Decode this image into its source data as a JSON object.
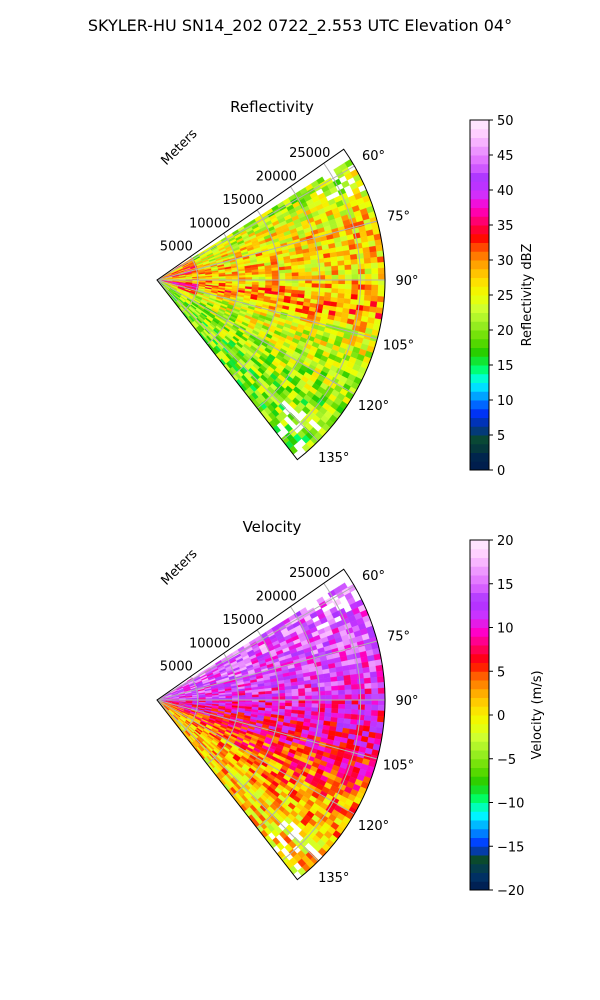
{
  "figure_title": "SKYLER-HU  SN14_202  0722_2.553 UTC Elevation 04°",
  "chart_data": [
    {
      "type": "heatmap",
      "projection": "polar-sector",
      "title": "Reflectivity",
      "range_axis_label": "Meters",
      "range_ticks": [
        5000,
        10000,
        15000,
        20000,
        25000
      ],
      "range_tick_labels": [
        "5000",
        "10000",
        "15000",
        "20000",
        "25000"
      ],
      "rmax": 28000,
      "azimuth_range_deg": [
        55,
        142
      ],
      "azimuth_ticks": [
        "60°",
        "75°",
        "90°",
        "105°",
        "120°",
        "135°"
      ],
      "azimuth_tick_values": [
        60,
        75,
        90,
        105,
        120,
        135
      ],
      "grid": true,
      "field_profile": [
        {
          "azimuth": 60,
          "mean_value": 22
        },
        {
          "azimuth": 75,
          "mean_value": 27
        },
        {
          "azimuth": 90,
          "mean_value": 27
        },
        {
          "azimuth": 100,
          "mean_value": 30
        },
        {
          "azimuth": 105,
          "mean_value": 25
        },
        {
          "azimuth": 120,
          "mean_value": 22
        },
        {
          "azimuth": 135,
          "mean_value": 20
        }
      ],
      "colorbar": {
        "label": "Reflectivity dBZ",
        "min": 0,
        "max": 50,
        "ticks": [
          0,
          5,
          10,
          15,
          20,
          25,
          30,
          35,
          40,
          45,
          50
        ],
        "colormap": [
          "#001a4d",
          "#00264d",
          "#0a4a2a",
          "#003399",
          "#0033ff",
          "#0099ff",
          "#00ffff",
          "#00ff66",
          "#22cc00",
          "#66dd00",
          "#99ee22",
          "#ccff33",
          "#eeff00",
          "#ffdd00",
          "#ffaa00",
          "#ff6600",
          "#ff0000",
          "#ff0066",
          "#ff00cc",
          "#cc33ff",
          "#aa33ff",
          "#dd66ff",
          "#ee99ff",
          "#ffccff",
          "#ffeeff"
        ]
      }
    },
    {
      "type": "heatmap",
      "projection": "polar-sector",
      "title": "Velocity",
      "range_axis_label": "Meters",
      "range_ticks": [
        5000,
        10000,
        15000,
        20000,
        25000
      ],
      "range_tick_labels": [
        "5000",
        "10000",
        "15000",
        "20000",
        "25000"
      ],
      "rmax": 28000,
      "azimuth_range_deg": [
        55,
        142
      ],
      "azimuth_ticks": [
        "60°",
        "75°",
        "90°",
        "105°",
        "120°",
        "135°"
      ],
      "azimuth_tick_values": [
        60,
        75,
        90,
        105,
        120,
        135
      ],
      "grid": true,
      "field_profile": [
        {
          "azimuth": 60,
          "mean_value": 14
        },
        {
          "azimuth": 75,
          "mean_value": 13
        },
        {
          "azimuth": 85,
          "mean_value": 12
        },
        {
          "azimuth": 95,
          "mean_value": 10
        },
        {
          "azimuth": 105,
          "mean_value": 8
        },
        {
          "azimuth": 120,
          "mean_value": 3
        },
        {
          "azimuth": 135,
          "mean_value": 1
        }
      ],
      "colorbar": {
        "label": "Velocity (m/s)",
        "min": -20,
        "max": 20,
        "ticks": [
          -20,
          -15,
          -10,
          -5,
          0,
          5,
          10,
          15,
          20
        ],
        "colormap": [
          "#001a4d",
          "#003366",
          "#0a4a2a",
          "#0033ff",
          "#0099ff",
          "#00ffff",
          "#00ff66",
          "#22cc00",
          "#66dd00",
          "#99ee22",
          "#ccff33",
          "#eeff00",
          "#ffdd00",
          "#ffaa00",
          "#ff6600",
          "#ff0000",
          "#ff0066",
          "#ff00cc",
          "#cc33ff",
          "#aa33ff",
          "#dd66ff",
          "#ee99ff",
          "#ffccff",
          "#ffeeff"
        ]
      }
    }
  ]
}
